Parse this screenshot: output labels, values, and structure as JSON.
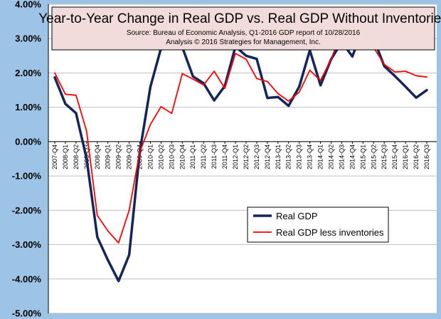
{
  "chart_data": {
    "type": "line",
    "title": "Year-to-Year Change in Real GDP vs. Real GDP Without Inventories",
    "subtitle_lines": [
      "Source: Bureau of Economic Analysis, Q1-2016 GDP report of 10/28/2016",
      "Analysis © 2016 Strategies for Management, Inc."
    ],
    "xlabel": "",
    "ylabel": "",
    "ylim": [
      -5.0,
      4.0
    ],
    "y_ticks": [
      4.0,
      3.0,
      2.0,
      1.0,
      0.0,
      -1.0,
      -2.0,
      -3.0,
      -4.0,
      -5.0
    ],
    "y_tick_labels": [
      "4.00%",
      "3.00%",
      "2.00%",
      "1.00%",
      "0.00%",
      "-1.00%",
      "-2.00%",
      "-3.00%",
      "-4.00%",
      "-5.00%"
    ],
    "grid": true,
    "legend_position": "lower-right",
    "categories": [
      "2007-Q4",
      "2008-Q1",
      "2008-Q2",
      "2008-Q3",
      "2008-Q4",
      "2009-Q1",
      "2009-Q2",
      "2009-Q3",
      "2009-Q4",
      "2010-Q1",
      "2010-Q2",
      "2010-Q3",
      "2010-Q4",
      "2011-Q1",
      "2011-Q2",
      "2011-Q3",
      "2011-Q4",
      "2012-Q1",
      "2012-Q2",
      "2012-Q3",
      "2012-Q4",
      "2013-Q1",
      "2013-Q2",
      "2013-Q3",
      "2013-Q4",
      "2014-Q1",
      "2014-Q2",
      "2014-Q3",
      "2014-Q4",
      "2015-Q1",
      "2015-Q2",
      "2015-Q3",
      "2015-Q4",
      "2016-Q1",
      "2016-Q2",
      "2016-Q3"
    ],
    "series": [
      {
        "name": "Real GDP",
        "color": "#14255a",
        "values": [
          1.87,
          1.1,
          0.83,
          -0.5,
          -2.78,
          -3.45,
          -4.06,
          -3.3,
          -0.3,
          1.6,
          2.72,
          3.08,
          2.75,
          1.9,
          1.7,
          1.2,
          1.62,
          2.77,
          2.5,
          2.41,
          1.27,
          1.3,
          1.04,
          1.6,
          2.66,
          1.64,
          2.4,
          2.9,
          2.48,
          3.31,
          3.0,
          2.2,
          1.91,
          1.6,
          1.28,
          1.5
        ]
      },
      {
        "name": "Real GDP less inventories",
        "color": "#ff0000",
        "values": [
          2.0,
          1.38,
          1.35,
          0.3,
          -2.15,
          -2.6,
          -2.95,
          -2.0,
          -0.3,
          0.5,
          1.02,
          0.82,
          1.98,
          1.82,
          1.65,
          2.05,
          1.55,
          2.57,
          2.4,
          1.84,
          1.75,
          1.4,
          1.18,
          1.44,
          2.08,
          1.78,
          2.4,
          3.2,
          2.7,
          2.79,
          2.74,
          2.25,
          2.03,
          2.05,
          1.92,
          1.88
        ]
      }
    ]
  }
}
